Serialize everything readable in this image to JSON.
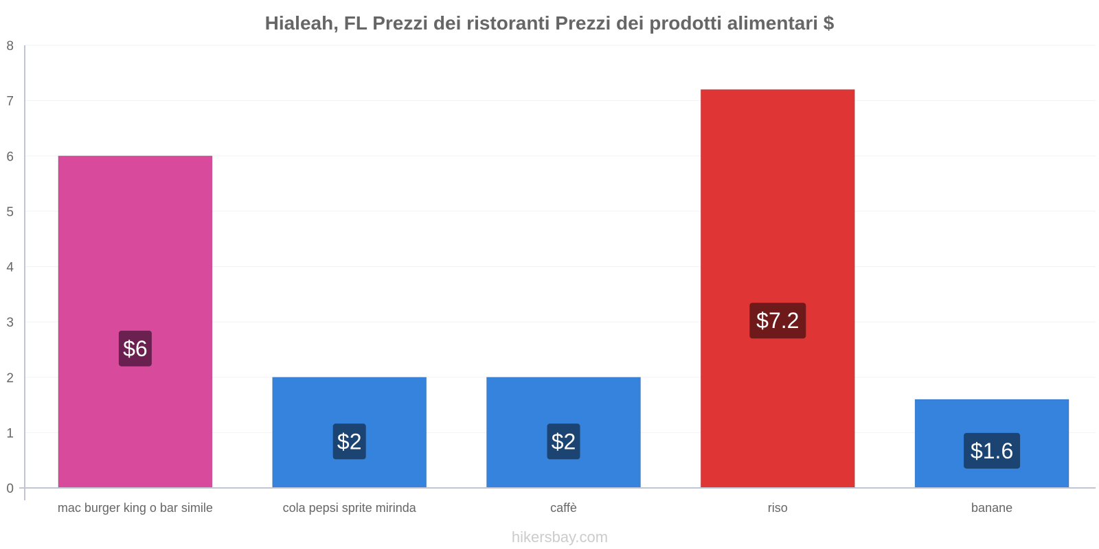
{
  "chart_data": {
    "type": "bar",
    "title": "Hialeah, FL Prezzi dei ristoranti Prezzi dei prodotti alimentari $",
    "categories": [
      "mac burger king o bar simile",
      "cola pepsi sprite mirinda",
      "caffè",
      "riso",
      "banane"
    ],
    "values": [
      6,
      2,
      2,
      7.2,
      1.6
    ],
    "value_labels": [
      "$6",
      "$2",
      "$2",
      "$7.2",
      "$1.6"
    ],
    "colors": [
      "#d84a9b",
      "#3583dc",
      "#3583dc",
      "#e03535",
      "#3583dc"
    ],
    "label_bg_colors": [
      "#6b2150",
      "#1c4472",
      "#1c4472",
      "#6e1a1a",
      "#1c4472"
    ],
    "ylim": [
      0,
      8
    ],
    "yticks": [
      "0",
      "1",
      "2",
      "3",
      "4",
      "5",
      "6",
      "7",
      "8"
    ],
    "xlabel": "",
    "ylabel": "",
    "grid": true
  },
  "watermark": "hikersbay.com"
}
